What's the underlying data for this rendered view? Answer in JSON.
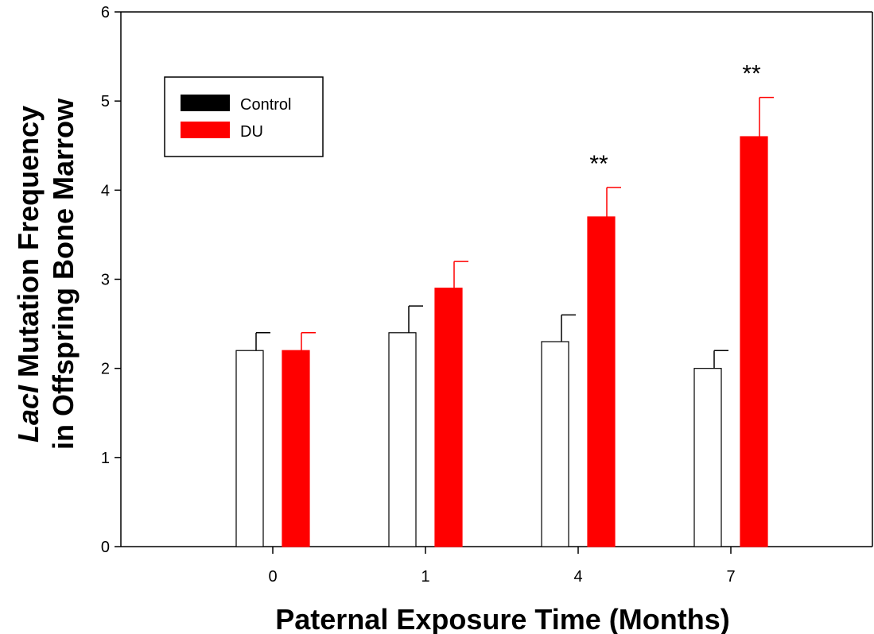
{
  "chart_data": {
    "type": "bar",
    "categories": [
      "0",
      "1",
      "4",
      "7"
    ],
    "series": [
      {
        "name": "Control",
        "values": [
          2.2,
          2.4,
          2.3,
          2.0
        ],
        "errors": [
          0.2,
          0.3,
          0.3,
          0.2
        ],
        "color": "#ffffff"
      },
      {
        "name": "DU",
        "values": [
          2.2,
          2.9,
          3.7,
          4.6
        ],
        "errors": [
          0.2,
          0.3,
          0.33,
          0.44
        ],
        "color": "#ff0000"
      }
    ],
    "annotations": [
      "",
      "",
      "**",
      "**"
    ],
    "xlabel": "Paternal Exposure Time (Months)",
    "ylabel_line1_italic": "LacI",
    "ylabel_line1_rest": " Mutation Frequency",
    "ylabel_line2": "in Offspring Bone Marrow",
    "ylim": [
      0,
      6
    ],
    "yticks": [
      "0",
      "1",
      "2",
      "3",
      "4",
      "5",
      "6"
    ],
    "legend_position": "top-left",
    "legend_swatch_colors": [
      "#000000",
      "#ff0000"
    ],
    "grid": false
  }
}
